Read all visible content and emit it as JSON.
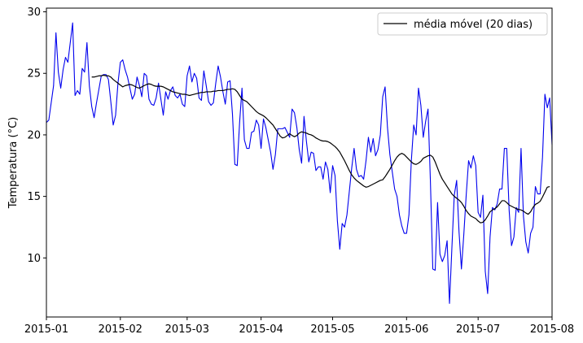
{
  "chart_data": {
    "type": "line",
    "title": "",
    "xlabel": "",
    "ylabel": "Temperatura (°C)",
    "xlim": [
      "2015-01-01",
      "2015-08-01"
    ],
    "ylim": [
      5.2,
      30.3
    ],
    "grid": false,
    "legend_position": "top-right",
    "x_ticks": [
      "2015-01",
      "2015-02",
      "2015-03",
      "2015-04",
      "2015-05",
      "2015-06",
      "2015-07",
      "2015-08"
    ],
    "y_ticks": [
      10,
      15,
      20,
      25,
      30
    ],
    "series": [
      {
        "name": "",
        "role": "daily",
        "color": "#0000ee",
        "x_start": "2015-01-01",
        "values": [
          21.0,
          21.2,
          22.6,
          24.0,
          28.3,
          25.1,
          23.8,
          25.3,
          26.3,
          25.9,
          27.5,
          29.1,
          23.2,
          23.6,
          23.3,
          25.4,
          25.1,
          27.5,
          24.0,
          22.3,
          21.4,
          22.6,
          23.7,
          24.8,
          24.9,
          24.9,
          24.5,
          22.7,
          20.8,
          21.6,
          24.2,
          25.9,
          26.1,
          25.3,
          24.7,
          23.8,
          22.9,
          23.3,
          24.7,
          24.0,
          23.1,
          25.0,
          24.8,
          22.9,
          22.5,
          22.4,
          23.0,
          24.2,
          22.9,
          21.6,
          23.5,
          22.9,
          23.6,
          23.9,
          23.2,
          23.0,
          23.3,
          22.5,
          22.3,
          24.8,
          25.6,
          24.3,
          25.0,
          24.6,
          23.0,
          22.8,
          25.2,
          24.0,
          22.7,
          22.4,
          22.6,
          24.2,
          25.6,
          24.7,
          23.5,
          22.5,
          24.3,
          24.4,
          21.7,
          17.6,
          17.5,
          21.0,
          23.8,
          19.6,
          18.9,
          18.9,
          20.2,
          20.3,
          21.2,
          20.8,
          18.9,
          21.3,
          20.6,
          19.6,
          18.6,
          17.2,
          18.4,
          20.5,
          20.5,
          20.5,
          20.6,
          20.2,
          19.8,
          22.1,
          21.8,
          20.6,
          18.8,
          17.7,
          21.5,
          19.5,
          17.8,
          18.6,
          18.5,
          17.1,
          17.4,
          17.4,
          16.4,
          17.8,
          17.2,
          15.3,
          17.5,
          16.7,
          13.0,
          10.7,
          12.8,
          12.5,
          13.5,
          15.4,
          17.3,
          18.9,
          17.2,
          16.6,
          16.7,
          16.4,
          17.9,
          19.8,
          18.6,
          19.7,
          18.3,
          18.8,
          20.0,
          23.1,
          23.9,
          20.6,
          18.4,
          17.0,
          15.6,
          15.0,
          13.5,
          12.6,
          12.0,
          12.0,
          13.5,
          17.9,
          20.8,
          20.0,
          23.8,
          22.4,
          19.8,
          21.1,
          22.1,
          16.2,
          9.1,
          9.0,
          14.5,
          10.3,
          9.7,
          10.2,
          11.4,
          6.3,
          10.8,
          15.1,
          16.3,
          12.1,
          9.1,
          11.9,
          15.1,
          17.9,
          17.3,
          18.3,
          17.5,
          13.7,
          13.3,
          15.1,
          8.9,
          7.1,
          11.7,
          14.1,
          13.9,
          14.4,
          15.6,
          15.6,
          18.9,
          18.9,
          13.9,
          11.0,
          11.7,
          14.1,
          13.7,
          18.9,
          13.4,
          11.3,
          10.4,
          12.0,
          12.5,
          15.8,
          15.2,
          15.2,
          18.2,
          23.3,
          22.2,
          23.0,
          19.2
        ]
      },
      {
        "name": "média móvel (20 dias)",
        "role": "rolling_mean",
        "color": "#000000",
        "x_start": "2015-01-20",
        "values": [
          24.7,
          24.7,
          24.75,
          24.8,
          24.8,
          24.85,
          24.8,
          24.8,
          24.7,
          24.5,
          24.35,
          24.2,
          24.05,
          23.9,
          24.0,
          24.05,
          24.1,
          24.05,
          23.95,
          23.85,
          23.8,
          23.9,
          24.0,
          24.1,
          24.15,
          24.1,
          24.0,
          23.95,
          23.95,
          23.95,
          23.9,
          23.8,
          23.7,
          23.6,
          23.5,
          23.45,
          23.4,
          23.35,
          23.3,
          23.3,
          23.25,
          23.2,
          23.25,
          23.3,
          23.35,
          23.4,
          23.45,
          23.45,
          23.5,
          23.5,
          23.5,
          23.55,
          23.55,
          23.6,
          23.6,
          23.6,
          23.65,
          23.7,
          23.7,
          23.75,
          23.7,
          23.5,
          23.2,
          22.9,
          22.8,
          22.7,
          22.5,
          22.3,
          22.1,
          21.9,
          21.75,
          21.65,
          21.55,
          21.4,
          21.2,
          21.0,
          20.8,
          20.5,
          20.2,
          19.9,
          19.75,
          19.8,
          19.95,
          20.1,
          19.95,
          19.85,
          19.95,
          20.15,
          20.25,
          20.2,
          20.15,
          20.05,
          20.0,
          19.9,
          19.75,
          19.65,
          19.55,
          19.5,
          19.5,
          19.45,
          19.35,
          19.2,
          19.05,
          18.85,
          18.6,
          18.25,
          17.9,
          17.5,
          17.1,
          16.75,
          16.5,
          16.3,
          16.15,
          16.0,
          15.85,
          15.75,
          15.8,
          15.9,
          16.0,
          16.1,
          16.2,
          16.3,
          16.35,
          16.6,
          16.9,
          17.2,
          17.55,
          17.9,
          18.2,
          18.4,
          18.5,
          18.4,
          18.2,
          18.0,
          17.8,
          17.65,
          17.6,
          17.7,
          17.85,
          18.1,
          18.2,
          18.3,
          18.35,
          18.2,
          17.8,
          17.3,
          16.8,
          16.4,
          16.1,
          15.8,
          15.5,
          15.2,
          15.0,
          14.85,
          14.7,
          14.5,
          14.2,
          13.85,
          13.6,
          13.4,
          13.3,
          13.2,
          13.0,
          12.85,
          12.9,
          13.1,
          13.4,
          13.75,
          13.9,
          14.0,
          14.15,
          14.4,
          14.65,
          14.65,
          14.5,
          14.3,
          14.2,
          14.1,
          14.0,
          13.95,
          13.9,
          13.8,
          13.65,
          13.55,
          13.75,
          14.1,
          14.35,
          14.45,
          14.6,
          14.95,
          15.35,
          15.75,
          15.8
        ]
      }
    ]
  }
}
